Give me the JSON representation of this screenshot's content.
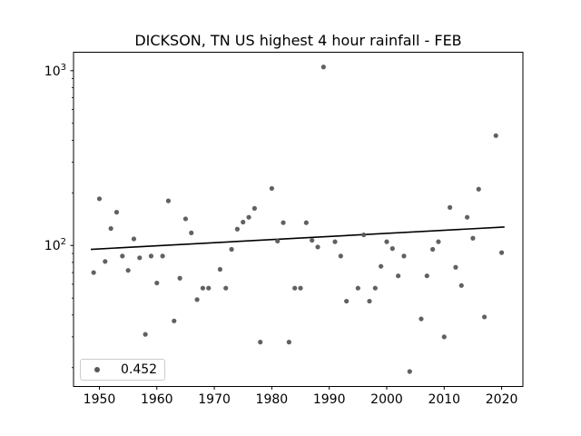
{
  "chart_data": {
    "type": "scatter",
    "title": "DICKSON, TN US highest 4 hour rainfall - FEB",
    "x": [
      1949,
      1950,
      1951,
      1952,
      1953,
      1954,
      1955,
      1956,
      1957,
      1958,
      1959,
      1960,
      1961,
      1962,
      1963,
      1964,
      1965,
      1966,
      1967,
      1968,
      1969,
      1971,
      1972,
      1973,
      1974,
      1975,
      1976,
      1977,
      1978,
      1980,
      1981,
      1982,
      1983,
      1984,
      1985,
      1986,
      1987,
      1988,
      1989,
      1991,
      1992,
      1993,
      1995,
      1996,
      1997,
      1998,
      1999,
      2000,
      2001,
      2002,
      2003,
      2004,
      2006,
      2007,
      2008,
      2009,
      2010,
      2011,
      2012,
      2013,
      2014,
      2015,
      2016,
      2017,
      2019,
      2020
    ],
    "y": [
      70,
      185,
      81,
      125,
      155,
      87,
      72,
      109,
      85,
      31,
      87,
      61,
      87,
      180,
      37,
      65,
      142,
      118,
      49,
      57,
      57,
      73,
      57,
      95,
      124,
      136,
      145,
      163,
      28,
      212,
      106,
      135,
      28,
      57,
      57,
      135,
      107,
      98,
      1050,
      105,
      87,
      48,
      57,
      115,
      48,
      57,
      76,
      105,
      96,
      67,
      87,
      19,
      38,
      67,
      95,
      105,
      30,
      165,
      75,
      59,
      145,
      110,
      210,
      39,
      425,
      91
    ],
    "xlabel": "",
    "ylabel": "",
    "xlim": [
      1945.5,
      2023.7
    ],
    "ylim": [
      15.6,
      1275
    ],
    "y_scale": "log",
    "x_ticks": [
      1950,
      1960,
      1970,
      1980,
      1990,
      2000,
      2010,
      2020
    ],
    "y_major_ticks": [
      100,
      1000
    ],
    "y_minor_ticks": [
      20,
      30,
      40,
      50,
      60,
      70,
      80,
      90,
      200,
      300,
      400,
      500,
      600,
      700,
      800,
      900
    ],
    "grid": false,
    "legend": {
      "label": "0.452",
      "position": "lower left"
    },
    "trend_line": {
      "x": [
        1948.5,
        2020.5
      ],
      "y": [
        95,
        127.5
      ]
    },
    "colors": {
      "marker": "#595959",
      "trend": "#000000",
      "axis": "#000000",
      "tick_label": "#000000",
      "legend_border": "#cccccc"
    }
  }
}
